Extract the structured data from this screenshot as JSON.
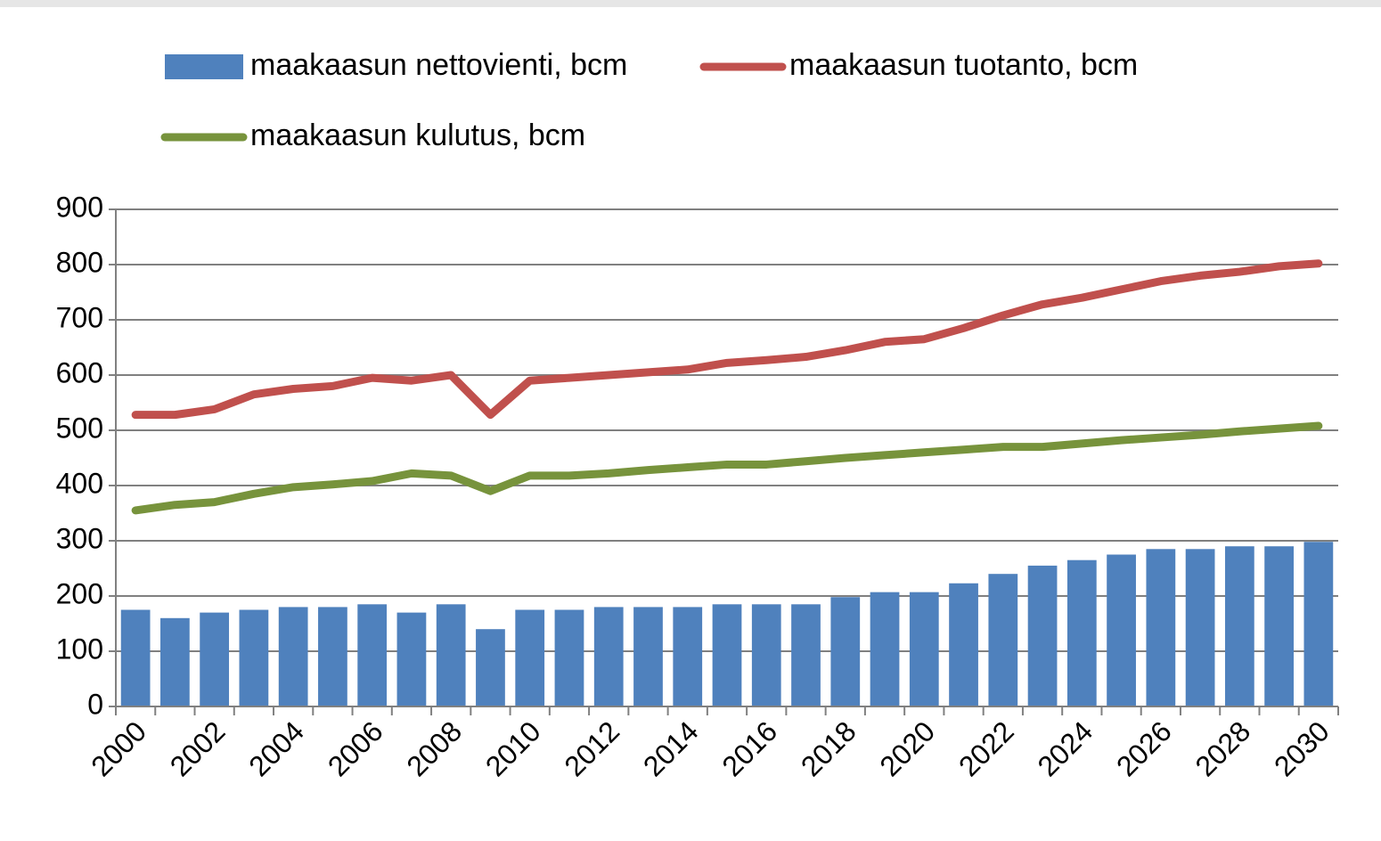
{
  "chart_data": {
    "type": "bar",
    "categories": [
      "2000",
      null,
      "2002",
      null,
      "2004",
      null,
      "2006",
      null,
      "2008",
      null,
      "2010",
      null,
      "2012",
      null,
      "2014",
      null,
      "2016",
      null,
      "2018",
      null,
      "2020",
      null,
      "2022",
      null,
      "2024",
      null,
      "2026",
      null,
      "2028",
      null,
      "2030"
    ],
    "series": [
      {
        "name": "maakaasun nettovienti, bcm",
        "type": "bar",
        "color": "#4f81bd",
        "values": [
          175,
          160,
          170,
          175,
          180,
          180,
          185,
          170,
          185,
          140,
          175,
          175,
          180,
          180,
          180,
          185,
          185,
          185,
          198,
          207,
          207,
          223,
          240,
          255,
          265,
          275,
          285,
          285,
          290,
          290,
          298
        ]
      },
      {
        "name": "maakaasun tuotanto, bcm",
        "type": "line",
        "color": "#c0504d",
        "values": [
          528,
          528,
          538,
          565,
          575,
          580,
          595,
          590,
          600,
          528,
          590,
          595,
          600,
          605,
          610,
          622,
          627,
          633,
          645,
          660,
          665,
          685,
          708,
          728,
          740,
          755,
          770,
          780,
          787,
          797,
          802
        ]
      },
      {
        "name": "maakaasun kulutus, bcm",
        "type": "line",
        "color": "#77933c",
        "values": [
          355,
          365,
          370,
          385,
          397,
          402,
          408,
          422,
          418,
          390,
          418,
          418,
          422,
          428,
          433,
          438,
          438,
          444,
          450,
          455,
          460,
          465,
          470,
          470,
          476,
          482,
          487,
          492,
          498,
          503,
          508
        ]
      }
    ],
    "ylim": [
      0,
      900
    ],
    "yticks": [
      0,
      100,
      200,
      300,
      400,
      500,
      600,
      700,
      800,
      900
    ],
    "grid": true,
    "legend": "top"
  }
}
